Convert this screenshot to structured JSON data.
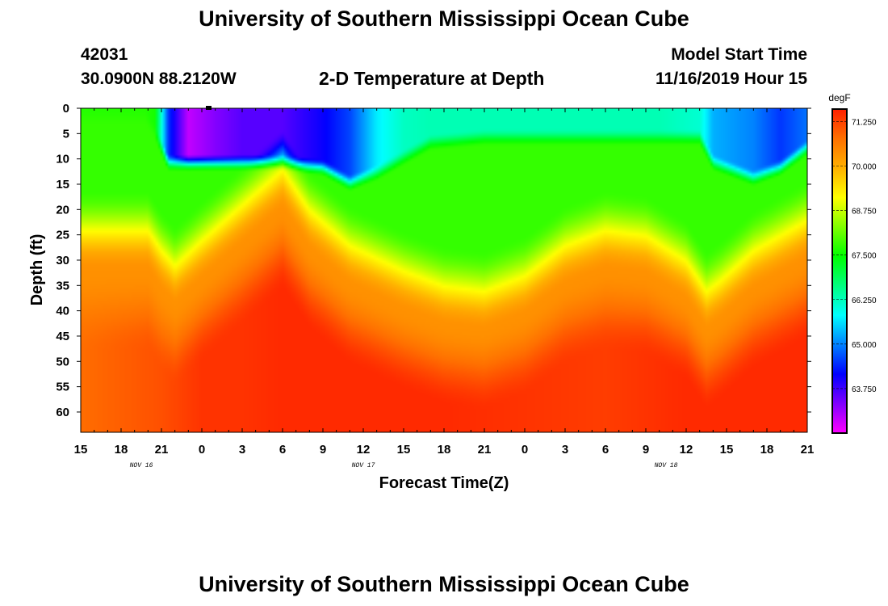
{
  "header": {
    "title": "University of Southern Mississippi Ocean Cube",
    "station_id": "42031",
    "location": "30.0900N 88.2120W",
    "plot_title": "2-D Temperature at Depth",
    "model_start_label": "Model Start Time",
    "model_start_value": "11/16/2019 Hour 15"
  },
  "footer": {
    "title": "University of Southern Mississippi Ocean Cube"
  },
  "chart_data": {
    "type": "heatmap",
    "title": "2-D Temperature at Depth",
    "xlabel": "Forecast Time(Z)",
    "ylabel": "Depth (ft)",
    "units": "degF",
    "x_hours_since_start": [
      0,
      3,
      6,
      9,
      12,
      15,
      18,
      21,
      24,
      27,
      30,
      33,
      36,
      39,
      42,
      45,
      48,
      51,
      54
    ],
    "x_tick_labels": [
      "15",
      "18",
      "21",
      "0",
      "3",
      "6",
      "9",
      "12",
      "15",
      "18",
      "21",
      "0",
      "3",
      "6",
      "9",
      "12",
      "15",
      "18",
      "21"
    ],
    "x_range_hours": [
      0,
      54
    ],
    "date_labels": [
      {
        "text": "NOV 16",
        "hour": 4.5
      },
      {
        "text": "NOV 17",
        "hour": 21
      },
      {
        "text": "NOV 18",
        "hour": 43.5
      }
    ],
    "y_ticks": [
      0,
      5,
      10,
      15,
      20,
      25,
      30,
      35,
      40,
      45,
      50,
      55,
      60
    ],
    "y_range": [
      0,
      64
    ],
    "colorbar": {
      "min": 62.5,
      "max": 71.6,
      "labels": [
        "71.250",
        "70.000",
        "68.750",
        "67.500",
        "66.250",
        "65.000",
        "63.750"
      ],
      "label_values": [
        71.25,
        70.0,
        68.75,
        67.5,
        66.25,
        65.0,
        63.75
      ],
      "colors": [
        "#ff00ff",
        "#8000ff",
        "#0000ff",
        "#0080ff",
        "#00ffff",
        "#00ff80",
        "#00ff00",
        "#80ff00",
        "#ffff00",
        "#ffb000",
        "#ff7000",
        "#ff2000"
      ]
    },
    "fields": {
      "mixed_layer_depth_ft": {
        "hours": [
          0,
          5,
          6,
          7,
          9,
          12,
          15,
          17,
          20,
          24,
          27,
          30,
          33,
          36,
          39,
          42,
          45,
          46.5,
          47.5,
          50,
          54
        ],
        "values": [
          24,
          24,
          28,
          31,
          26,
          19,
          12,
          20,
          27,
          32,
          35,
          36,
          33,
          27,
          24,
          25,
          30,
          36,
          34,
          28,
          22
        ]
      },
      "surface_temperature_degF": {
        "hours": [
          0,
          4.8,
          5.5,
          6.5,
          8,
          10,
          12,
          15,
          18,
          20,
          22,
          24,
          26,
          30,
          35,
          40,
          43,
          46,
          47,
          50,
          52,
          54
        ],
        "values": [
          67.7,
          67.7,
          67.6,
          64.5,
          62.9,
          63.3,
          63.6,
          63.6,
          64.1,
          64.6,
          65.7,
          66.2,
          66.3,
          66.3,
          66.3,
          66.3,
          66.3,
          66.1,
          65.3,
          65.0,
          64.5,
          64.9
        ]
      },
      "cold_layer_depth_ft": {
        "hours": [
          0,
          4.8,
          5.5,
          6.5,
          8,
          10,
          12,
          15,
          18,
          20,
          22,
          24,
          26,
          30,
          35,
          40,
          43,
          46,
          47,
          50,
          52,
          54
        ],
        "values": [
          0,
          0,
          3,
          9,
          9,
          9,
          9,
          9,
          10,
          13,
          11,
          8,
          5,
          4,
          4,
          4,
          4,
          4,
          9,
          12,
          10,
          6
        ]
      },
      "deep_temperature_degF": {
        "hours": [
          0,
          6,
          9,
          12,
          15,
          21,
          27,
          33,
          39,
          45,
          54
        ],
        "values": [
          70.8,
          71.1,
          71.4,
          71.4,
          71.5,
          71.5,
          71.5,
          71.4,
          71.3,
          71.5,
          71.5
        ]
      }
    }
  }
}
